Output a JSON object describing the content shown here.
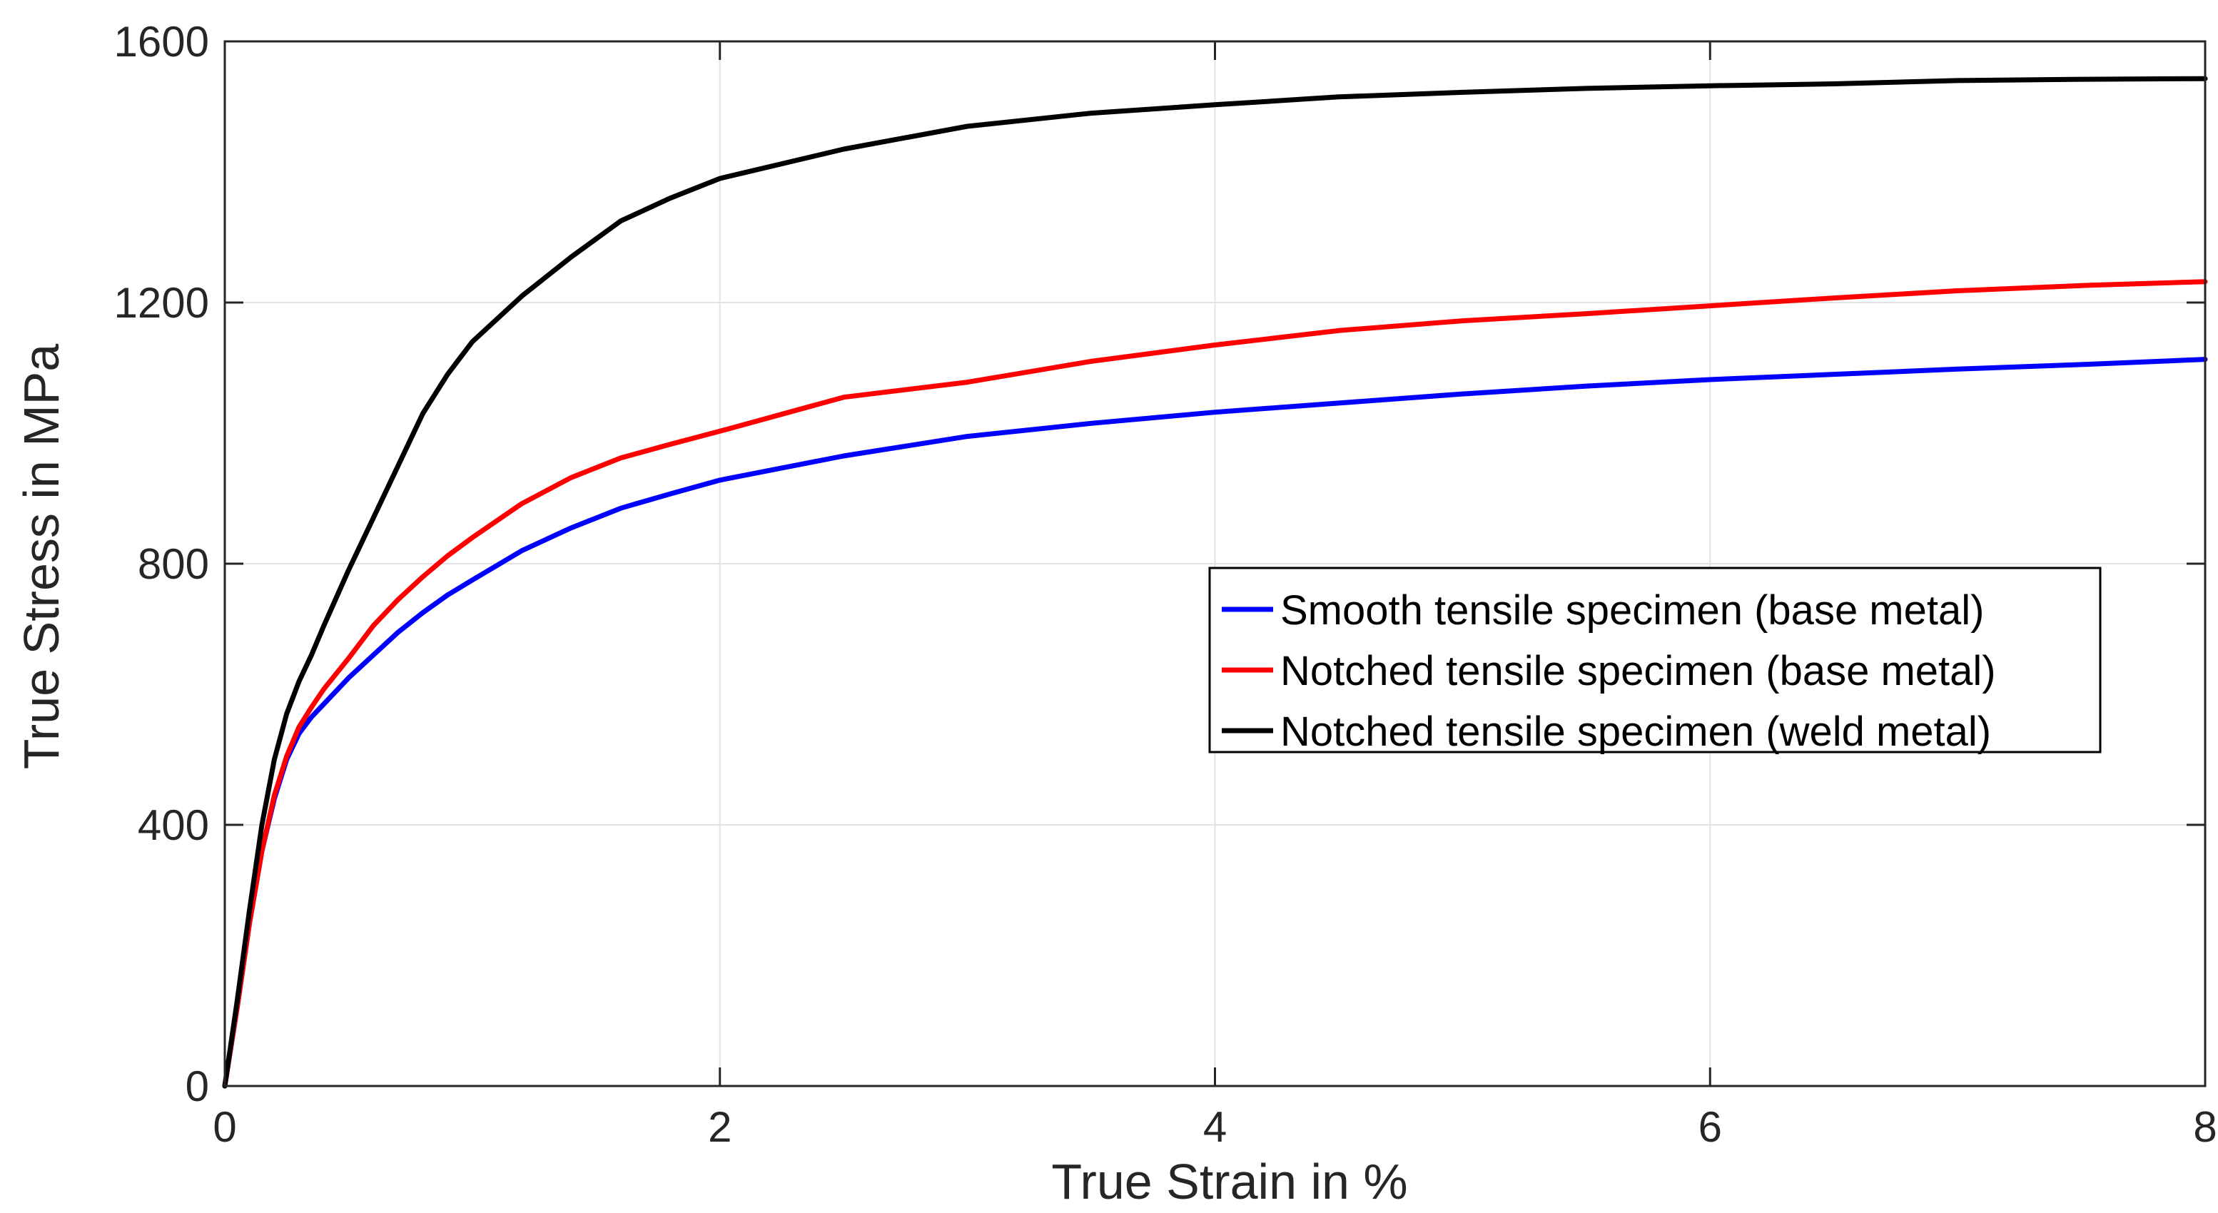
{
  "chart_data": {
    "type": "line",
    "title": "",
    "xlabel": "True Strain in %",
    "ylabel": "True Stress in MPa",
    "xlim": [
      0,
      8
    ],
    "ylim": [
      0,
      1600
    ],
    "xticks": [
      0,
      2,
      4,
      6,
      8
    ],
    "yticks": [
      0,
      400,
      800,
      1200,
      1600
    ],
    "x_tick_labels": [
      "0",
      "2",
      "4",
      "6",
      "8"
    ],
    "y_tick_labels": [
      "0",
      "400",
      "800",
      "1200",
      "1600"
    ],
    "grid": true,
    "legend_position": "center-right",
    "series": [
      {
        "name": "Smooth tensile specimen (base metal)",
        "color": "#0000ff",
        "x": [
          0,
          0.05,
          0.1,
          0.15,
          0.2,
          0.25,
          0.3,
          0.35,
          0.4,
          0.5,
          0.6,
          0.7,
          0.8,
          0.9,
          1.0,
          1.2,
          1.4,
          1.6,
          1.8,
          2.0,
          2.5,
          3.0,
          3.5,
          4.0,
          4.5,
          5.0,
          5.5,
          6.0,
          6.5,
          7.0,
          7.5,
          8.0
        ],
        "y": [
          0,
          120,
          250,
          360,
          440,
          500,
          540,
          565,
          585,
          625,
          660,
          695,
          725,
          752,
          775,
          820,
          855,
          885,
          907,
          928,
          965,
          995,
          1015,
          1032,
          1046,
          1060,
          1072,
          1082,
          1090,
          1098,
          1105,
          1113
        ]
      },
      {
        "name": "Notched tensile specimen (base metal)",
        "color": "#ff0000",
        "x": [
          0,
          0.05,
          0.1,
          0.15,
          0.2,
          0.25,
          0.3,
          0.35,
          0.4,
          0.5,
          0.6,
          0.7,
          0.8,
          0.9,
          1.0,
          1.2,
          1.4,
          1.6,
          1.8,
          2.0,
          2.5,
          3.0,
          3.5,
          4.0,
          4.5,
          5.0,
          5.5,
          6.0,
          6.5,
          7.0,
          7.5,
          8.0
        ],
        "y": [
          0,
          120,
          250,
          360,
          445,
          505,
          550,
          580,
          608,
          655,
          705,
          745,
          780,
          812,
          840,
          892,
          932,
          962,
          983,
          1003,
          1055,
          1078,
          1110,
          1135,
          1157,
          1172,
          1183,
          1195,
          1207,
          1218,
          1226,
          1232
        ]
      },
      {
        "name": "Notched tensile specimen (weld metal)",
        "color": "#000000",
        "x": [
          0,
          0.05,
          0.1,
          0.15,
          0.2,
          0.25,
          0.3,
          0.35,
          0.4,
          0.5,
          0.6,
          0.7,
          0.8,
          0.9,
          1.0,
          1.2,
          1.4,
          1.6,
          1.8,
          2.0,
          2.5,
          3.0,
          3.5,
          4.0,
          4.5,
          5.0,
          5.5,
          6.0,
          6.5,
          7.0,
          7.5,
          8.0
        ],
        "y": [
          0,
          130,
          270,
          400,
          500,
          570,
          620,
          660,
          705,
          790,
          870,
          950,
          1030,
          1090,
          1140,
          1210,
          1270,
          1325,
          1360,
          1390,
          1435,
          1470,
          1490,
          1503,
          1515,
          1522,
          1528,
          1532,
          1535,
          1540,
          1542,
          1543
        ]
      }
    ]
  }
}
